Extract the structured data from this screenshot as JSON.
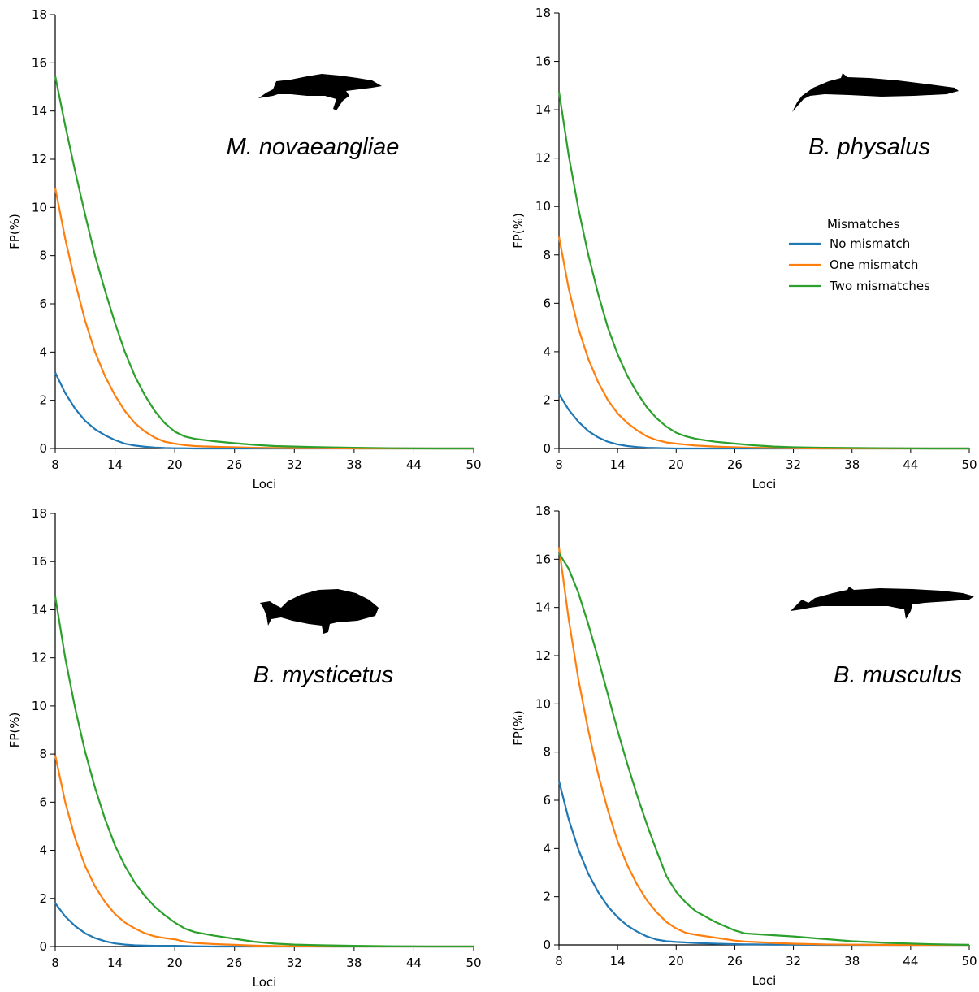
{
  "chart_data": [
    {
      "type": "line",
      "species_label": "M. novaeangliae",
      "xlabel": "Loci",
      "ylabel": "FP(%)",
      "xticks": [
        8,
        14,
        20,
        26,
        32,
        38,
        44,
        50
      ],
      "yticks": [
        0,
        2,
        4,
        6,
        8,
        10,
        12,
        14,
        16,
        18
      ],
      "xlim": [
        8,
        50
      ],
      "ylim": [
        0,
        18
      ],
      "legend": null,
      "x": [
        8,
        9,
        10,
        11,
        12,
        13,
        14,
        15,
        16,
        17,
        18,
        19,
        20,
        21,
        22,
        24,
        26,
        28,
        30,
        32,
        35,
        38,
        42,
        46,
        50
      ],
      "series": [
        {
          "name": "No mismatch",
          "color": "#1f77b4",
          "values": [
            3.15,
            2.3,
            1.65,
            1.15,
            0.8,
            0.55,
            0.35,
            0.2,
            0.12,
            0.07,
            0.04,
            0.02,
            0.01,
            0.01,
            0.0,
            0,
            0,
            0,
            0,
            0,
            0,
            0,
            0,
            0,
            0
          ]
        },
        {
          "name": "One mismatch",
          "color": "#ff7f0e",
          "values": [
            10.8,
            8.7,
            6.9,
            5.3,
            4.0,
            3.0,
            2.2,
            1.55,
            1.05,
            0.7,
            0.45,
            0.28,
            0.2,
            0.14,
            0.1,
            0.07,
            0.05,
            0.03,
            0.02,
            0.01,
            0.01,
            0,
            0,
            0,
            0
          ]
        },
        {
          "name": "Two mismatches",
          "color": "#2ca02c",
          "values": [
            15.45,
            13.4,
            11.5,
            9.7,
            8.0,
            6.55,
            5.2,
            4.0,
            3.0,
            2.2,
            1.55,
            1.05,
            0.7,
            0.5,
            0.4,
            0.3,
            0.22,
            0.15,
            0.1,
            0.08,
            0.05,
            0.03,
            0.01,
            0.0,
            0.0
          ]
        }
      ]
    },
    {
      "type": "line",
      "species_label": "B. physalus",
      "xlabel": "Loci",
      "ylabel": "FP(%)",
      "xticks": [
        8,
        14,
        20,
        26,
        32,
        38,
        44,
        50
      ],
      "yticks": [
        0,
        2,
        4,
        6,
        8,
        10,
        12,
        14,
        16,
        18
      ],
      "xlim": [
        8,
        50
      ],
      "ylim": [
        0,
        18
      ],
      "legend": {
        "title": "Mismatches",
        "entries": [
          "No mismatch",
          "One mismatch",
          "Two mismatches"
        ],
        "placement": "center-right"
      },
      "x": [
        8,
        9,
        10,
        11,
        12,
        13,
        14,
        15,
        16,
        17,
        18,
        19,
        20,
        21,
        22,
        24,
        26,
        28,
        30,
        32,
        35,
        38,
        42,
        46,
        50
      ],
      "series": [
        {
          "name": "No mismatch",
          "color": "#1f77b4",
          "values": [
            2.25,
            1.6,
            1.1,
            0.72,
            0.46,
            0.28,
            0.17,
            0.1,
            0.06,
            0.03,
            0.02,
            0.01,
            0.0,
            0,
            0,
            0,
            0,
            0,
            0,
            0,
            0,
            0,
            0,
            0,
            0
          ]
        },
        {
          "name": "One mismatch",
          "color": "#ff7f0e",
          "values": [
            8.75,
            6.6,
            4.95,
            3.7,
            2.75,
            2.0,
            1.45,
            1.05,
            0.75,
            0.5,
            0.35,
            0.25,
            0.2,
            0.16,
            0.12,
            0.08,
            0.05,
            0.03,
            0.02,
            0.01,
            0,
            0,
            0,
            0,
            0
          ]
        },
        {
          "name": "Two mismatches",
          "color": "#2ca02c",
          "values": [
            14.75,
            12.1,
            9.9,
            8.0,
            6.4,
            5.0,
            3.9,
            3.0,
            2.3,
            1.7,
            1.25,
            0.9,
            0.65,
            0.5,
            0.4,
            0.28,
            0.2,
            0.13,
            0.08,
            0.05,
            0.03,
            0.02,
            0.01,
            0,
            0
          ]
        }
      ]
    },
    {
      "type": "line",
      "species_label": "B. mysticetus",
      "xlabel": "Loci",
      "ylabel": "FP(%)",
      "xticks": [
        8,
        14,
        20,
        26,
        32,
        38,
        44,
        50
      ],
      "yticks": [
        0,
        2,
        4,
        6,
        8,
        10,
        12,
        14,
        16,
        18
      ],
      "xlim": [
        8,
        50
      ],
      "ylim": [
        0,
        18
      ],
      "legend": null,
      "x": [
        8,
        9,
        10,
        11,
        12,
        13,
        14,
        15,
        16,
        17,
        18,
        19,
        20,
        21,
        22,
        24,
        26,
        28,
        30,
        32,
        35,
        38,
        42,
        46,
        50
      ],
      "series": [
        {
          "name": "No mismatch",
          "color": "#1f77b4",
          "values": [
            1.8,
            1.25,
            0.85,
            0.55,
            0.35,
            0.22,
            0.13,
            0.08,
            0.05,
            0.04,
            0.03,
            0.03,
            0.03,
            0.02,
            0.01,
            0,
            0,
            0,
            0,
            0,
            0,
            0,
            0,
            0,
            0
          ]
        },
        {
          "name": "One mismatch",
          "color": "#ff7f0e",
          "values": [
            7.95,
            6.0,
            4.5,
            3.35,
            2.5,
            1.85,
            1.35,
            1.0,
            0.75,
            0.55,
            0.42,
            0.35,
            0.3,
            0.2,
            0.15,
            0.1,
            0.07,
            0.04,
            0.02,
            0.01,
            0,
            0,
            0,
            0,
            0
          ]
        },
        {
          "name": "Two mismatches",
          "color": "#2ca02c",
          "values": [
            14.55,
            12.0,
            9.9,
            8.1,
            6.6,
            5.3,
            4.2,
            3.35,
            2.65,
            2.1,
            1.65,
            1.3,
            1.0,
            0.75,
            0.6,
            0.45,
            0.32,
            0.2,
            0.12,
            0.08,
            0.05,
            0.03,
            0.01,
            0,
            0
          ]
        }
      ]
    },
    {
      "type": "line",
      "species_label": "B. musculus",
      "xlabel": "Loci",
      "ylabel": "FP(%)",
      "xticks": [
        8,
        14,
        20,
        26,
        32,
        38,
        44,
        50
      ],
      "yticks": [
        0,
        2,
        4,
        6,
        8,
        10,
        12,
        14,
        16,
        18
      ],
      "xlim": [
        8,
        50
      ],
      "ylim": [
        0,
        18
      ],
      "legend": null,
      "x": [
        8,
        9,
        10,
        11,
        12,
        13,
        14,
        15,
        16,
        17,
        18,
        19,
        20,
        21,
        22,
        24,
        26,
        27,
        28,
        30,
        32,
        35,
        38,
        42,
        46,
        50
      ],
      "series": [
        {
          "name": "No mismatch",
          "color": "#1f77b4",
          "values": [
            6.8,
            5.2,
            3.95,
            2.95,
            2.2,
            1.6,
            1.15,
            0.8,
            0.55,
            0.35,
            0.22,
            0.15,
            0.12,
            0.1,
            0.08,
            0.05,
            0.03,
            0.02,
            0.02,
            0.01,
            0.01,
            0,
            0,
            0,
            0,
            0
          ]
        },
        {
          "name": "One mismatch",
          "color": "#ff7f0e",
          "values": [
            16.5,
            13.5,
            11.0,
            8.9,
            7.1,
            5.6,
            4.3,
            3.3,
            2.5,
            1.85,
            1.35,
            0.95,
            0.68,
            0.5,
            0.42,
            0.3,
            0.18,
            0.14,
            0.12,
            0.08,
            0.05,
            0.02,
            0.01,
            0,
            0,
            0
          ]
        },
        {
          "name": "Two mismatches",
          "color": "#2ca02c",
          "values": [
            16.25,
            15.6,
            14.6,
            13.3,
            11.9,
            10.4,
            8.9,
            7.5,
            6.2,
            5.0,
            3.9,
            2.85,
            2.2,
            1.75,
            1.4,
            0.95,
            0.6,
            0.48,
            0.45,
            0.4,
            0.35,
            0.25,
            0.15,
            0.08,
            0.03,
            0.0
          ]
        }
      ]
    }
  ]
}
